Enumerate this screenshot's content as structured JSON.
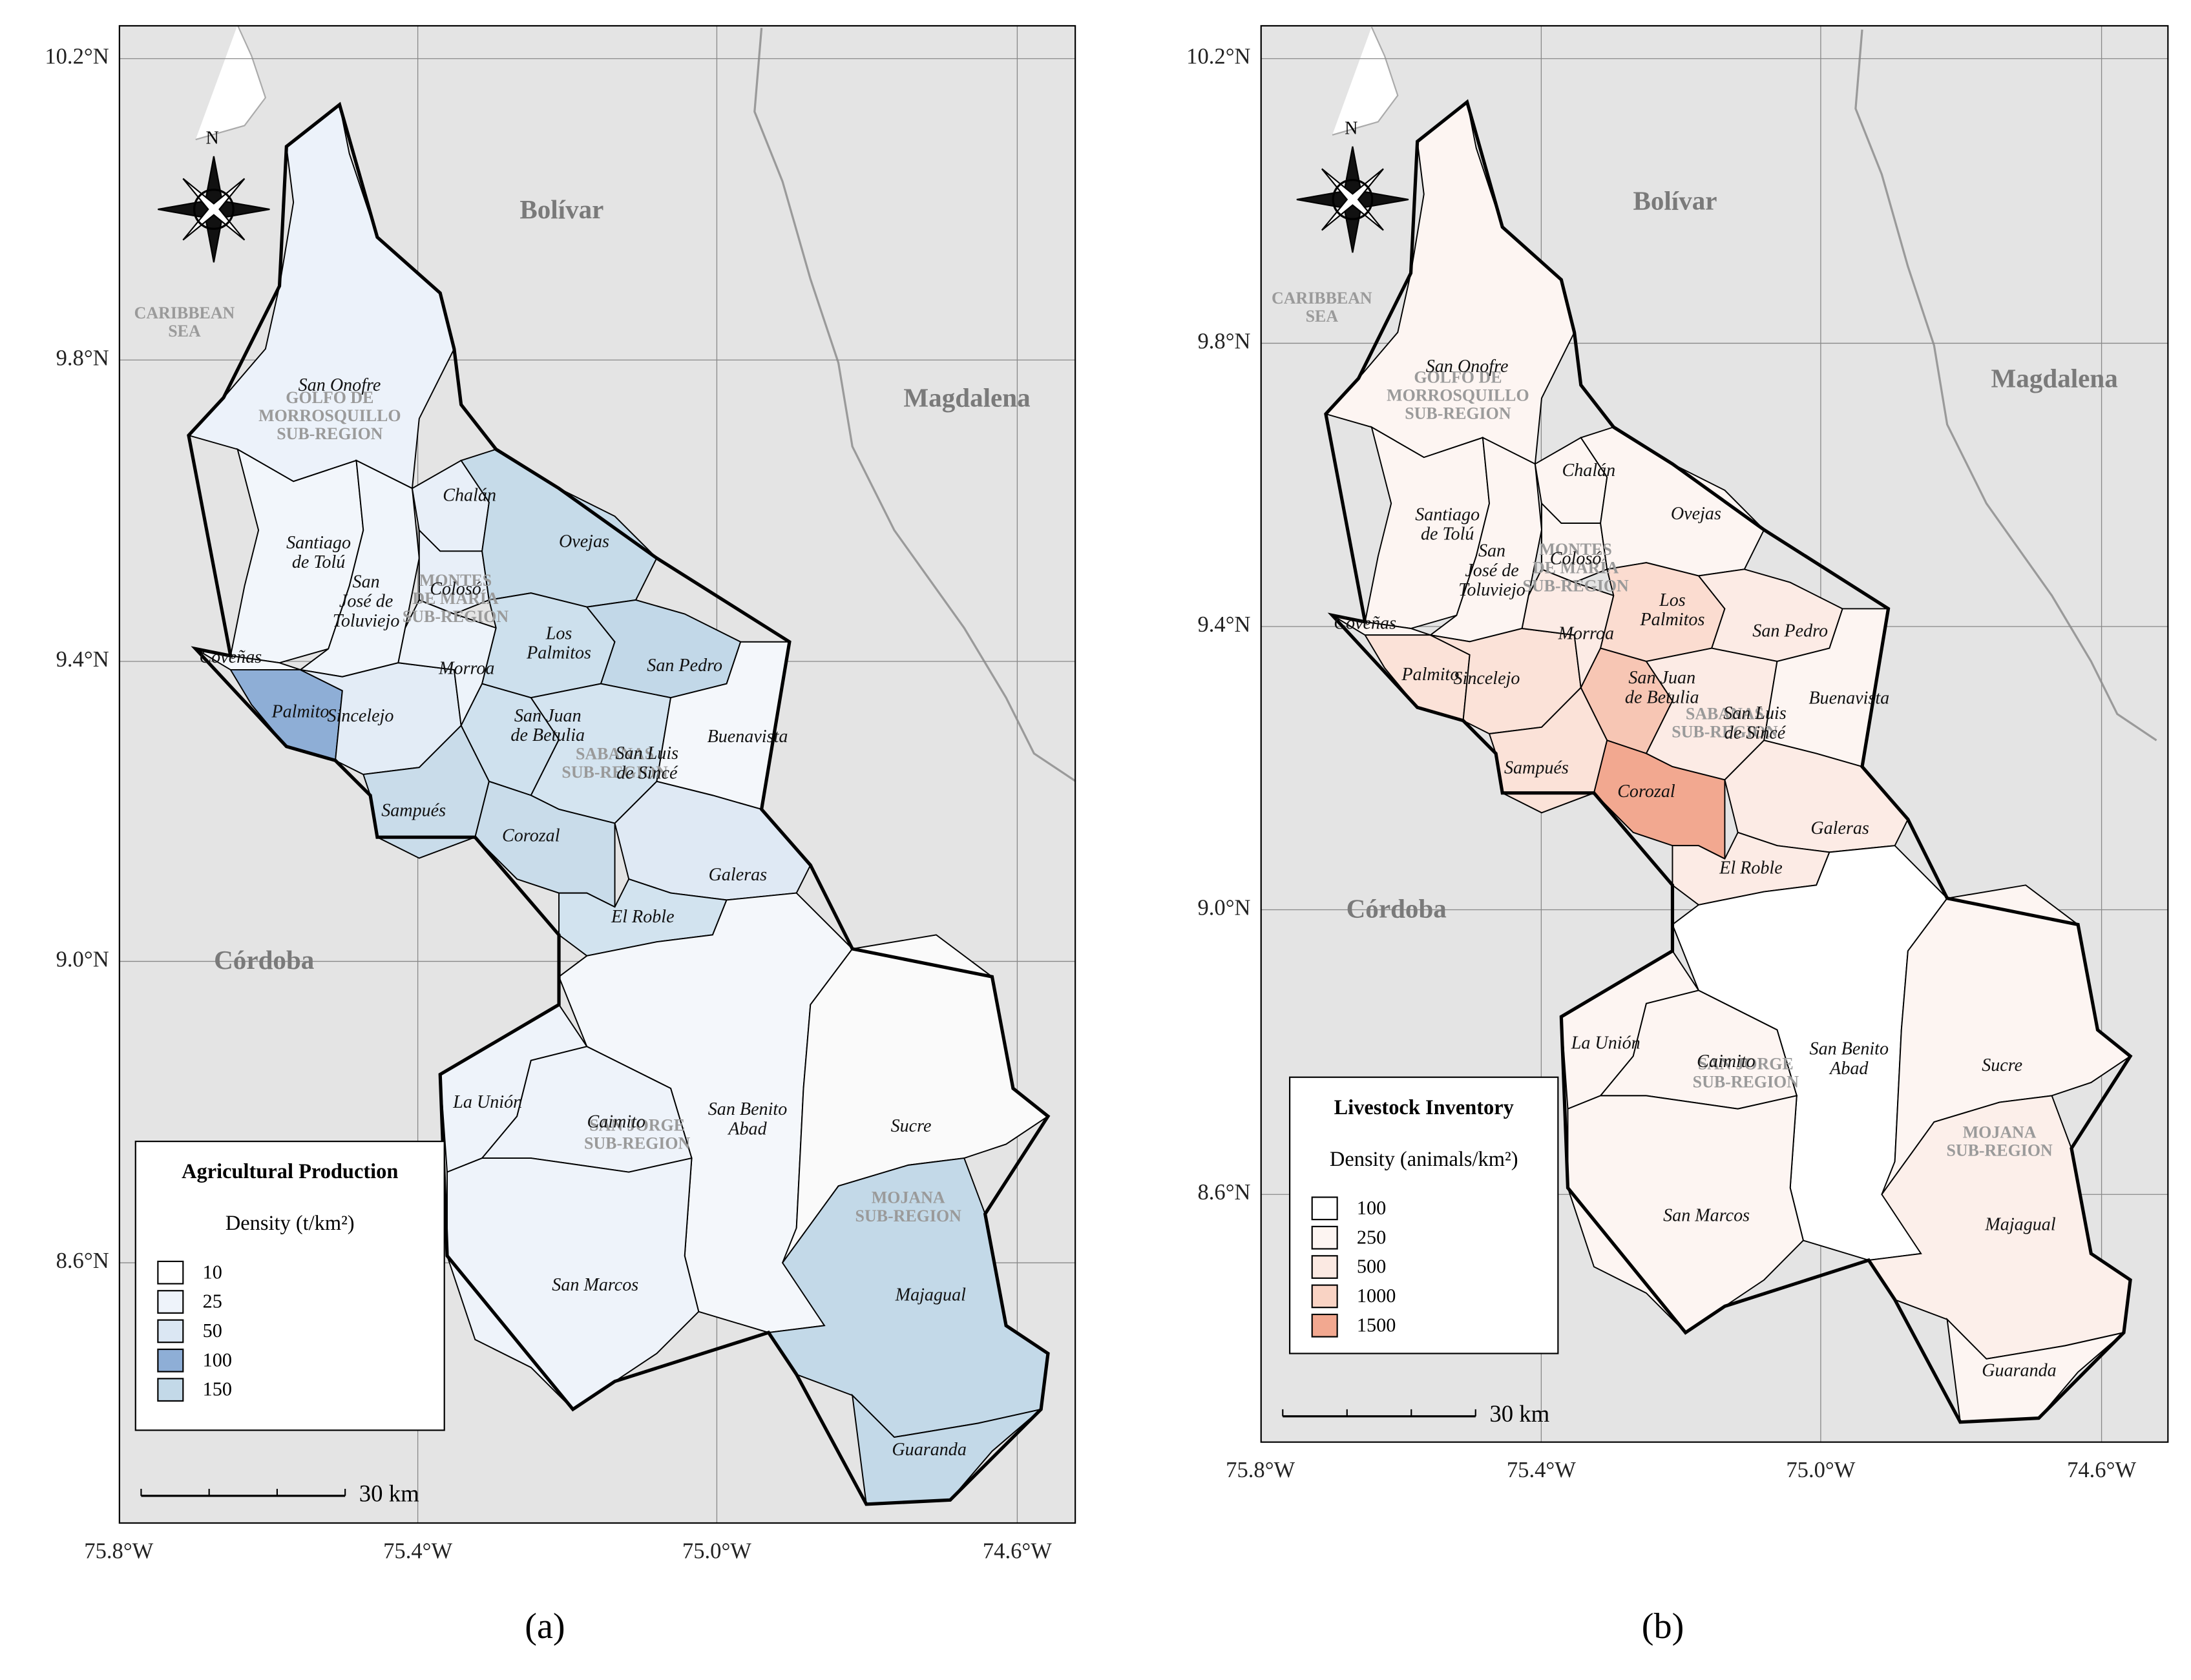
{
  "departments": [
    "Bolívar",
    "Magdalena",
    "Córdoba"
  ],
  "sea": [
    "CARIBBEAN",
    "SEA"
  ],
  "subregions": [
    [
      "GOLFO DE",
      "MORROSQUILLO",
      "SUB-REGION"
    ],
    [
      "MONTES",
      "DE MARÍA",
      "SUB-REGION"
    ],
    [
      "SABANAS",
      "SUB-REGION"
    ],
    [
      "SAN JORGE",
      "SUB-REGION"
    ],
    [
      "MOJANA",
      "SUB-REGION"
    ]
  ],
  "municipalities": [
    {
      "name": [
        "San Onofre"
      ]
    },
    {
      "name": [
        "Santiago",
        "de Tolú"
      ]
    },
    {
      "name": [
        "Coveñas"
      ]
    },
    {
      "name": [
        "San",
        "José de",
        "Toluviejo"
      ]
    },
    {
      "name": [
        "Palmito"
      ]
    },
    {
      "name": [
        "Sincelejo"
      ]
    },
    {
      "name": [
        "Chalán"
      ]
    },
    {
      "name": [
        "Colosó"
      ]
    },
    {
      "name": [
        "Morroa"
      ]
    },
    {
      "name": [
        "Ovejas"
      ]
    },
    {
      "name": [
        "Los",
        "Palmitos"
      ]
    },
    {
      "name": [
        "San Pedro"
      ]
    },
    {
      "name": [
        "San Juan",
        "de Betulia"
      ]
    },
    {
      "name": [
        "San Luis",
        "de Sincé"
      ]
    },
    {
      "name": [
        "Buenavista"
      ]
    },
    {
      "name": [
        "Sampués"
      ]
    },
    {
      "name": [
        "Corozal"
      ]
    },
    {
      "name": [
        "Galeras"
      ]
    },
    {
      "name": [
        "El Roble"
      ]
    },
    {
      "name": [
        "San Benito",
        "Abad"
      ]
    },
    {
      "name": [
        "La Unión"
      ]
    },
    {
      "name": [
        "Caimito"
      ]
    },
    {
      "name": [
        "San Marcos"
      ]
    },
    {
      "name": [
        "Sucre"
      ]
    },
    {
      "name": [
        "Majagual"
      ]
    },
    {
      "name": [
        "Guaranda"
      ]
    }
  ],
  "compass_north": "N",
  "lat_labels": [
    "10.2°N",
    "9.8°N",
    "9.4°N",
    "9.0°N",
    "8.6°N"
  ],
  "lon_labels": [
    "75.8°W",
    "75.4°W",
    "75.0°W",
    "74.6°W"
  ],
  "scale_label": "30 km",
  "panels": [
    {
      "label": "(a)",
      "legend": {
        "title": "Agricultural Production",
        "subtitle": "Density (t/km²)",
        "items": [
          {
            "label": "10",
            "color": "#ffffff"
          },
          {
            "label": "25",
            "color": "#eef3fa"
          },
          {
            "label": "50",
            "color": "#dbe7f3"
          },
          {
            "label": "100",
            "color": "#8eaed6"
          },
          {
            "label": "150",
            "color": "#c3d9e8"
          }
        ]
      },
      "fills": [
        "#ecf2fa",
        "#f2f6fb",
        "#f5f8fc",
        "#f0f5fb",
        "#8eaed6",
        "#e3ecf6",
        "#e8eff8",
        "#e8eff8",
        "#edf3fa",
        "#c6dbe9",
        "#cde0ed",
        "#c2d8e8",
        "#cfe1ee",
        "#d4e4f0",
        "#f4f7fb",
        "#c9dcea",
        "#c9dcea",
        "#dfe9f4",
        "#d2e3ef",
        "#f4f7fb",
        "#eef3fa",
        "#eef3fa",
        "#eef3fa",
        "#fafafa",
        "#c3d9e8",
        "#c3d9e8"
      ]
    },
    {
      "label": "(b)",
      "legend": {
        "title": "Livestock Inventory",
        "subtitle": "Density (animals/km²)",
        "items": [
          {
            "label": "100",
            "color": "#ffffff"
          },
          {
            "label": "250",
            "color": "#fdf5f2"
          },
          {
            "label": "500",
            "color": "#fbe9e2"
          },
          {
            "label": "1000",
            "color": "#f9d3c4"
          },
          {
            "label": "1500",
            "color": "#f2a890"
          }
        ]
      },
      "fills": [
        "#fdf5f2",
        "#fdf5f2",
        "#fdf5f2",
        "#fdf5f2",
        "#fbe2d8",
        "#fbe2d8",
        "#fdf5f2",
        "#fdf5f2",
        "#fcebe5",
        "#fdf5f2",
        "#fbdcd0",
        "#fcebe5",
        "#f7c6b4",
        "#fcebe5",
        "#fdf5f2",
        "#fbe2d8",
        "#f2a890",
        "#fcebe5",
        "#fcebe5",
        "#ffffff",
        "#fdf5f2",
        "#fdf5f2",
        "#fdf5f2",
        "#fdf5f2",
        "#fcefea",
        "#fdf5f2"
      ]
    }
  ]
}
